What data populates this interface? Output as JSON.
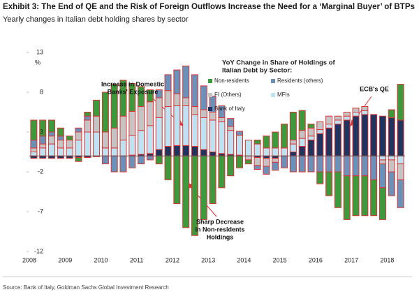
{
  "chart_data": {
    "type": "stacked_bar",
    "title": "Exhibit 3: The End of QE and the Risk of Foreign Outflows Increase the Need for a ‘Marginal Buyer’ of BTPs",
    "subtitle": "Yearly changes in Italian debt holding shares by sector",
    "y_label": "%",
    "source": "Source: Bank of Italy, Goldman Sachs Global Investment Research",
    "legend_title": [
      "YoY Change in Share of Holdings of",
      "Italian Debt by Sector:"
    ],
    "annotations": [
      {
        "lines": [
          "Increase in Domestic",
          "Banks' Exposure"
        ]
      },
      {
        "lines": [
          "Sharp Decrease",
          "in Non-residents",
          "Holdings"
        ]
      },
      {
        "lines": [
          "ECB's QE"
        ]
      }
    ],
    "categories": [
      "2008",
      null,
      null,
      null,
      "2009",
      null,
      null,
      null,
      "2010",
      null,
      null,
      null,
      "2011",
      null,
      null,
      null,
      "2012",
      null,
      null,
      null,
      "2013",
      null,
      null,
      null,
      "2014",
      null,
      null,
      null,
      "2015",
      null,
      null,
      null,
      "2016",
      null,
      null,
      null,
      "2017",
      null,
      null,
      null,
      "2018",
      null
    ],
    "series": [
      {
        "name": "Non-residents",
        "color": "#3c9a3c",
        "values": [
          2.5,
          2,
          1.5,
          1,
          0.5,
          -0.5,
          0.5,
          2,
          5,
          5.5,
          4.5,
          3.5,
          2.5,
          1.5,
          -1,
          -3,
          -6,
          -9,
          -10,
          -8,
          -6,
          -4,
          -2.5,
          -1.5,
          -0.5,
          0.5,
          1.5,
          2,
          3,
          3.5,
          2.5,
          0.5,
          -1.5,
          -3,
          -4.5,
          -5.5,
          -5,
          -5,
          -4.5,
          -4,
          1,
          4.5
        ]
      },
      {
        "name": "Residents (others)",
        "color": "#6b91b8",
        "values": [
          1,
          1,
          0.5,
          0.5,
          0,
          0.5,
          0.5,
          0,
          -1,
          -2,
          -2,
          -1.5,
          -1,
          -0.5,
          1,
          2,
          3,
          4,
          4,
          3,
          2,
          1.5,
          1,
          0.5,
          0,
          -0.5,
          -1,
          -1,
          -1.5,
          -2,
          -2,
          -2,
          -2,
          -2,
          -2,
          -2.5,
          -2.5,
          -2.5,
          -3,
          -3,
          -3,
          -3.5
        ]
      },
      {
        "name": "FI (Others)",
        "color": "#c4c4c4",
        "values": [
          0.5,
          0.5,
          1,
          1,
          1,
          1,
          1.5,
          2,
          2,
          2.5,
          3,
          3,
          3,
          3,
          2.5,
          2,
          1.5,
          1,
          1,
          1,
          1,
          0.5,
          0.5,
          0,
          -0.5,
          -1,
          -1,
          -0.5,
          0,
          0.5,
          1,
          1,
          1,
          1,
          0.5,
          0.5,
          0.5,
          0.5,
          0,
          -0.5,
          -1.5,
          -2
        ]
      },
      {
        "name": "MFIs",
        "color": "#bfe2f2",
        "values": [
          0.5,
          1,
          1.5,
          1,
          1,
          2,
          3,
          3,
          1,
          1,
          2,
          2.5,
          3,
          3.5,
          4,
          5,
          5,
          5,
          4,
          4,
          4,
          4,
          3,
          2.5,
          2,
          1.5,
          1,
          1,
          1,
          1,
          1,
          0.5,
          0.5,
          0.5,
          0.5,
          0.5,
          0.5,
          0.5,
          0,
          -0.5,
          -0.5,
          -1
        ]
      },
      {
        "name": "Bank of Italy",
        "color": "#1f3560",
        "values": [
          -0.3,
          -0.3,
          -0.3,
          -0.3,
          -0.3,
          -0.2,
          -0.2,
          -0.1,
          0,
          0,
          0,
          0.1,
          0.2,
          0.3,
          0.8,
          1.2,
          1.3,
          1.3,
          1.2,
          0.8,
          0.5,
          0.3,
          0.2,
          0.1,
          0,
          -0.2,
          -0.3,
          -0.3,
          0,
          0.5,
          1.2,
          2,
          2.8,
          3.5,
          4,
          4.5,
          5,
          5.2,
          5.2,
          5,
          4.8,
          4.5
        ]
      }
    ],
    "ylim": [
      -12,
      13
    ],
    "yticks": [
      -12,
      -7,
      -2,
      3,
      8,
      13
    ]
  }
}
